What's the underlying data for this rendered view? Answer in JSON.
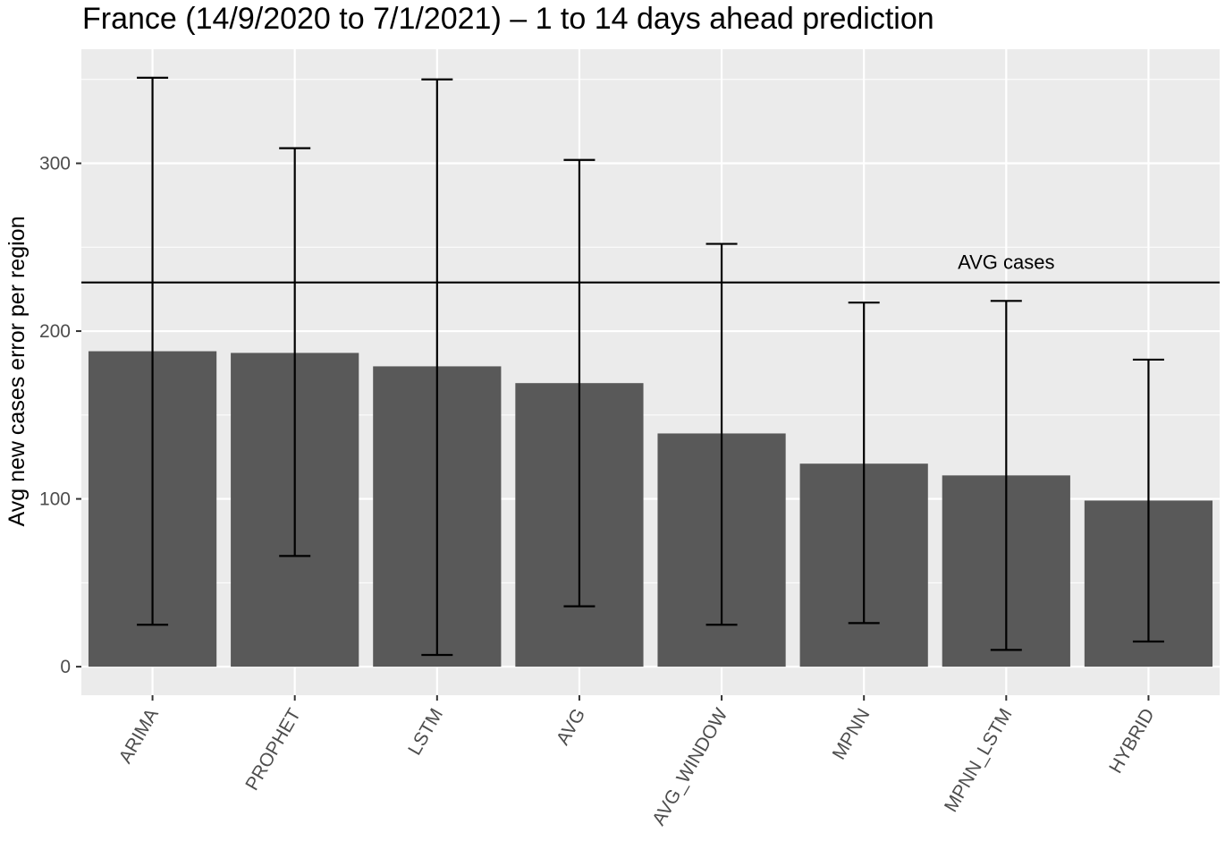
{
  "chart_data": {
    "type": "bar",
    "title": "France (14/9/2020 to 7/1/2021) – 1 to 14 days ahead prediction",
    "xlabel": "",
    "ylabel": "Avg new cases error per region",
    "categories": [
      "ARIMA",
      "PROPHET",
      "LSTM",
      "AVG",
      "AVG_WINDOW",
      "MPNN",
      "MPNN_LSTM",
      "HYBRID"
    ],
    "values": [
      188,
      187,
      179,
      169,
      139,
      121,
      114,
      99
    ],
    "error_low": [
      25,
      66,
      7,
      36,
      25,
      26,
      10,
      15
    ],
    "error_high": [
      351,
      309,
      350,
      302,
      252,
      217,
      218,
      183
    ],
    "y_ticks": [
      0,
      100,
      200,
      300
    ],
    "ylim": [
      -17,
      368
    ],
    "reference_line": {
      "value": 229,
      "label": "AVG cases"
    },
    "grid": true,
    "colors": {
      "panel": "#ebebeb",
      "grid": "#ffffff",
      "bar": "#595959",
      "line": "#000000"
    }
  }
}
